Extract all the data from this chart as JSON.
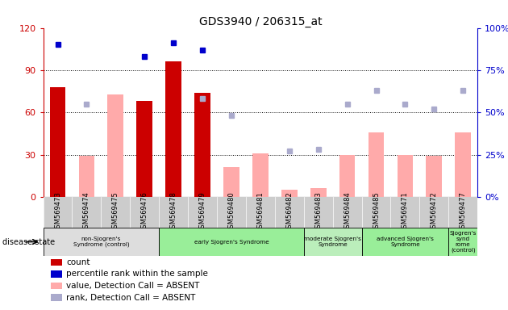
{
  "title": "GDS3940 / 206315_at",
  "samples": [
    "GSM569473",
    "GSM569474",
    "GSM569475",
    "GSM569476",
    "GSM569478",
    "GSM569479",
    "GSM569480",
    "GSM569481",
    "GSM569482",
    "GSM569483",
    "GSM569484",
    "GSM569485",
    "GSM569471",
    "GSM569472",
    "GSM569477"
  ],
  "count_values": [
    78,
    null,
    null,
    68,
    96,
    74,
    null,
    null,
    null,
    null,
    null,
    null,
    null,
    null,
    null
  ],
  "count_color": "#cc0000",
  "percentile_values": [
    90,
    null,
    null,
    83,
    91,
    87,
    null,
    null,
    null,
    null,
    null,
    null,
    null,
    null,
    null
  ],
  "percentile_color": "#0000cc",
  "absent_value_values": [
    null,
    29,
    73,
    null,
    null,
    null,
    21,
    31,
    5,
    6,
    30,
    46,
    30,
    29,
    46
  ],
  "absent_value_color": "#ffaaaa",
  "absent_rank_values": [
    null,
    55,
    null,
    null,
    null,
    58,
    48,
    null,
    27,
    28,
    55,
    63,
    55,
    52,
    63
  ],
  "absent_rank_color": "#aaaacc",
  "ylim_left": [
    0,
    120
  ],
  "ylim_right": [
    0,
    100
  ],
  "yticks_left": [
    0,
    30,
    60,
    90,
    120
  ],
  "yticks_right": [
    0,
    25,
    50,
    75,
    100
  ],
  "ytick_labels_left": [
    "0",
    "30",
    "60",
    "90",
    "120"
  ],
  "ytick_labels_right": [
    "0%",
    "25%",
    "50%",
    "75%",
    "100%"
  ],
  "group_configs": [
    {
      "indices": [
        0,
        1,
        2,
        3
      ],
      "label": "non-Sjogren's\nSyndrome (control)",
      "color": "#dddddd"
    },
    {
      "indices": [
        4,
        5,
        6,
        7,
        8
      ],
      "label": "early Sjogren's Syndrome",
      "color": "#99ee99"
    },
    {
      "indices": [
        9,
        10
      ],
      "label": "moderate Sjogren's\nSyndrome",
      "color": "#bbeebb"
    },
    {
      "indices": [
        11,
        12,
        13
      ],
      "label": "advanced Sjogren's\nSyndrome",
      "color": "#99ee99"
    },
    {
      "indices": [
        14
      ],
      "label": "Sjogren's\nsynd\nrome\n(control)",
      "color": "#99ee99"
    }
  ],
  "disease_state_label": "disease state",
  "legend_colors": [
    "#cc0000",
    "#0000cc",
    "#ffaaaa",
    "#aaaacc"
  ],
  "legend_labels": [
    "count",
    "percentile rank within the sample",
    "value, Detection Call = ABSENT",
    "rank, Detection Call = ABSENT"
  ],
  "bg_color": "#ffffff",
  "plot_bg": "#eeeeee",
  "axis_left_color": "#cc0000",
  "axis_right_color": "#0000cc",
  "tick_label_bg": "#cccccc"
}
